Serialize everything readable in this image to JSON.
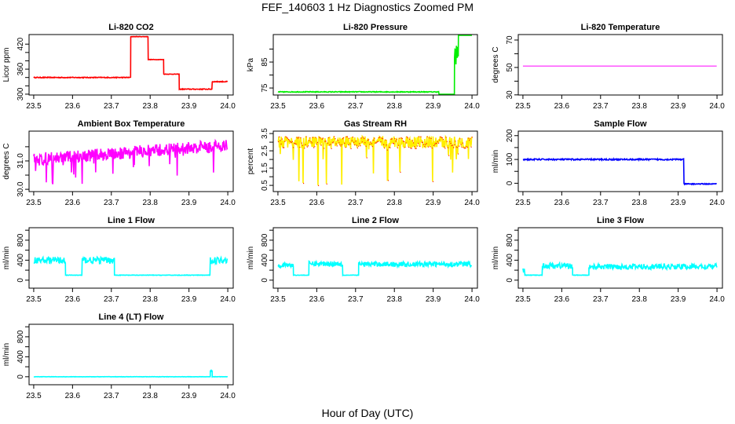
{
  "title": "FEF_140603  1 Hz Diagnostics Zoomed PM",
  "xlabel": "Hour of Day (UTC)",
  "chart_data": [
    {
      "type": "line",
      "title": "Li-820 CO2",
      "ylabel": "Licor ppm",
      "color": "#ff0000",
      "ylim": [
        298,
        443
      ],
      "yticks": [
        300,
        320,
        340,
        360,
        380,
        400,
        420
      ],
      "ytick_labels": {
        "300": "300",
        "360": "360",
        "420": "420"
      },
      "segments": [
        {
          "x": [
            23.5,
            23.75
          ],
          "y": 340,
          "noise": 2
        },
        {
          "x": [
            23.75,
            23.795
          ],
          "y": 438,
          "noise": 1
        },
        {
          "x": [
            23.795,
            23.835
          ],
          "y": 383,
          "noise": 1
        },
        {
          "x": [
            23.835,
            23.875
          ],
          "y": 348,
          "noise": 1
        },
        {
          "x": [
            23.875,
            23.96
          ],
          "y": 312,
          "noise": 2
        },
        {
          "x": [
            23.96,
            24.0
          ],
          "y": 330,
          "noise": 2
        }
      ]
    },
    {
      "type": "line",
      "title": "Li-820 Pressure",
      "ylabel": "kPa",
      "color": "#00ee00",
      "ylim": [
        72.3,
        95.6
      ],
      "yticks": [
        75,
        80,
        85,
        90
      ],
      "ytick_labels": {
        "75": "75",
        "85": "85"
      },
      "segments": [
        {
          "x": [
            23.5,
            23.915
          ],
          "y": 73.5,
          "noise": 0.3
        },
        {
          "x": [
            23.915,
            23.955
          ],
          "y": 72.5,
          "noise": 0.1
        },
        {
          "x": [
            23.955,
            23.965
          ],
          "y": 88,
          "noise": 8
        },
        {
          "x": [
            23.965,
            24.0
          ],
          "y": 95.4,
          "noise": 0.2
        }
      ]
    },
    {
      "type": "line",
      "title": "Li-820 Temperature",
      "ylabel": "degrees C",
      "color": "#ff00ff",
      "ylim": [
        29.9,
        74
      ],
      "yticks": [
        30,
        40,
        50,
        60,
        70
      ],
      "ytick_labels": {
        "30": "30",
        "50": "50",
        "70": "70"
      },
      "segments": [
        {
          "x": [
            23.5,
            24.0
          ],
          "y": 51,
          "noise": 0
        }
      ]
    },
    {
      "type": "line",
      "title": "Ambient Box Temperature",
      "ylabel": "degrees C",
      "color": "#ff00ff",
      "ylim": [
        29.92,
        32.05
      ],
      "yticks": [
        30.0,
        30.5,
        31.0,
        31.5
      ],
      "ytick_labels": {
        "30": "30.0",
        "31": "31.0"
      },
      "segments": [
        {
          "x": [
            23.5,
            24.0
          ],
          "y": [
            31.05,
            31.55
          ],
          "noise": 0.45,
          "spikes": 1.0
        }
      ]
    },
    {
      "type": "line",
      "title": "Gas Stream RH",
      "ylabel": "percent",
      "color": "#ffee00",
      "color2": "#ff2200",
      "ylim": [
        0.14,
        3.64
      ],
      "yticks": [
        0.5,
        1.0,
        1.5,
        2.0,
        2.5,
        3.0,
        3.5
      ],
      "ytick_labels": {
        "0.5": "0.5",
        "1.5": "1.5",
        "2.5": "2.5",
        "3.5": "3.5"
      },
      "segments": [
        {
          "x": [
            23.5,
            24.0
          ],
          "y": 3.0,
          "noise": 0.7,
          "spikes": 2.5
        }
      ]
    },
    {
      "type": "line",
      "title": "Sample Flow",
      "ylabel": "ml/min",
      "color": "#0000ff",
      "ylim": [
        -35,
        219
      ],
      "yticks": [
        0,
        50,
        100,
        150,
        200
      ],
      "ytick_labels": {
        "0": "0",
        "100": "100",
        "200": "200"
      },
      "segments": [
        {
          "x": [
            23.5,
            23.915
          ],
          "y": 100,
          "noise": 6
        },
        {
          "x": [
            23.915,
            24.0
          ],
          "y": -3,
          "noise": 4
        }
      ]
    },
    {
      "type": "line",
      "title": "Line 1 Flow",
      "ylabel": "ml/min",
      "color": "#00ffff",
      "ylim": [
        -160,
        1050
      ],
      "yticks": [
        0,
        200,
        400,
        600,
        800,
        1000
      ],
      "ytick_labels": {
        "0": "0",
        "400": "400",
        "800": "800"
      },
      "segments": [
        {
          "x": [
            23.5,
            23.582
          ],
          "y": 400,
          "noise": 130
        },
        {
          "x": [
            23.582,
            23.625
          ],
          "y": 100,
          "noise": 10
        },
        {
          "x": [
            23.625,
            23.708
          ],
          "y": 400,
          "noise": 130
        },
        {
          "x": [
            23.708,
            23.955
          ],
          "y": 100,
          "noise": 10
        },
        {
          "x": [
            23.955,
            24.0
          ],
          "y": 400,
          "noise": 130
        }
      ]
    },
    {
      "type": "line",
      "title": "Line 2 Flow",
      "ylabel": "ml/min",
      "color": "#00ffff",
      "ylim": [
        -160,
        1050
      ],
      "yticks": [
        0,
        200,
        400,
        600,
        800,
        1000
      ],
      "ytick_labels": {
        "0": "0",
        "400": "400",
        "800": "800"
      },
      "segments": [
        {
          "x": [
            23.5,
            23.54
          ],
          "y": 300,
          "noise": 90
        },
        {
          "x": [
            23.54,
            23.58
          ],
          "y": 100,
          "noise": 10
        },
        {
          "x": [
            23.58,
            23.667
          ],
          "y": 330,
          "noise": 100
        },
        {
          "x": [
            23.667,
            23.708
          ],
          "y": 100,
          "noise": 10
        },
        {
          "x": [
            23.708,
            24.0
          ],
          "y": 320,
          "noise": 100
        }
      ]
    },
    {
      "type": "line",
      "title": "Line 3 Flow",
      "ylabel": "ml/min",
      "color": "#00ffff",
      "ylim": [
        -160,
        1050
      ],
      "yticks": [
        0,
        200,
        400,
        600,
        800,
        1000
      ],
      "ytick_labels": {
        "0": "0",
        "400": "400",
        "800": "800"
      },
      "segments": [
        {
          "x": [
            23.5,
            23.505
          ],
          "y": 180,
          "noise": 120
        },
        {
          "x": [
            23.505,
            23.55
          ],
          "y": 100,
          "noise": 10
        },
        {
          "x": [
            23.55,
            23.628
          ],
          "y": 290,
          "noise": 120
        },
        {
          "x": [
            23.628,
            23.67
          ],
          "y": 100,
          "noise": 10
        },
        {
          "x": [
            23.67,
            24.0
          ],
          "y": 270,
          "noise": 110
        }
      ]
    },
    {
      "type": "line",
      "title": "Line 4 (LT) Flow",
      "ylabel": "ml/min",
      "color": "#00ffff",
      "ylim": [
        -160,
        1050
      ],
      "yticks": [
        0,
        200,
        400,
        600,
        800,
        1000
      ],
      "ytick_labels": {
        "0": "0",
        "400": "400",
        "800": "800"
      },
      "segments": [
        {
          "x": [
            23.5,
            23.955
          ],
          "y": 0,
          "noise": 6
        },
        {
          "x": [
            23.955,
            23.96
          ],
          "y": 120,
          "noise": 20
        },
        {
          "x": [
            23.96,
            24.0
          ],
          "y": 0,
          "noise": 6
        }
      ]
    }
  ],
  "xlim": [
    23.488,
    24.014
  ],
  "xticks": [
    "23.5",
    "23.6",
    "23.7",
    "23.8",
    "23.9",
    "24.0"
  ]
}
